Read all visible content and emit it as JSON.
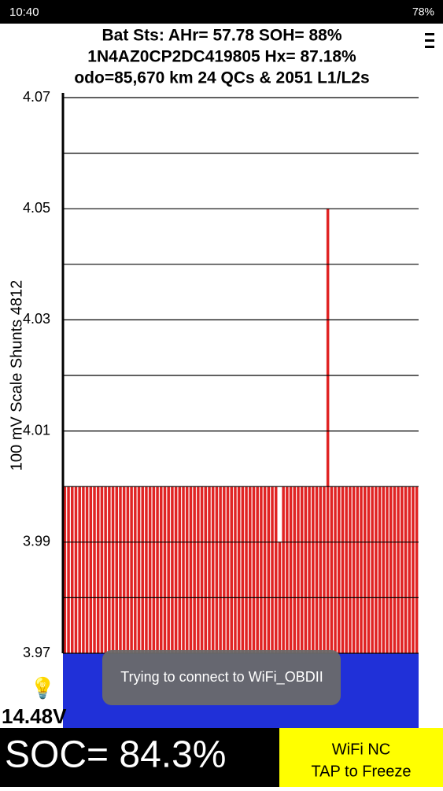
{
  "status_bar": {
    "time": "10:40",
    "battery": "78%"
  },
  "header": {
    "line1": "Bat Sts: AHr= 57.78 SOH= 88%",
    "line2": "1N4AZ0CP2DC419805   Hx= 87.18%",
    "line3": "odo=85,670 km  24 QCs  &  2051 L1/L2s"
  },
  "chart_data": {
    "type": "bar",
    "y_label": "100 mV Scale   Shunts 4812",
    "color": "#e02424",
    "values": [
      4.0,
      4.0,
      4.0,
      4.0,
      4.0,
      4.0,
      4.0,
      4.0,
      4.0,
      4.0,
      4.0,
      4.0,
      4.0,
      4.0,
      4.0,
      4.0,
      4.0,
      4.0,
      4.0,
      4.0,
      4.0,
      4.0,
      4.0,
      4.0,
      4.0,
      4.0,
      4.0,
      4.0,
      4.0,
      4.0,
      4.0,
      4.0,
      4.0,
      4.0,
      4.0,
      4.0,
      4.0,
      4.0,
      4.0,
      4.0,
      4.0,
      4.0,
      4.0,
      4.0,
      4.0,
      4.0,
      4.0,
      4.0,
      4.0,
      4.0,
      4.0,
      4.0,
      4.0,
      4.0,
      4.0,
      4.0,
      4.0,
      4.0,
      3.99,
      4.0,
      4.0,
      4.0,
      4.0,
      4.0,
      4.0,
      4.0,
      4.0,
      4.0,
      4.0,
      4.0,
      4.0,
      4.05,
      4.0,
      4.0,
      4.0,
      4.0,
      4.0,
      4.0,
      4.0,
      4.0,
      4.0,
      4.0,
      4.0,
      4.0,
      4.0,
      4.0,
      4.0,
      4.0,
      4.0,
      4.0,
      4.0,
      4.0,
      4.0,
      4.0,
      4.0,
      4.0
    ],
    "ylim": [
      3.97,
      4.07
    ],
    "yticks": [
      3.97,
      3.99,
      4.01,
      4.03,
      4.05,
      4.07
    ],
    "minor_yticks": [
      3.98,
      4.0,
      4.02,
      4.04,
      4.06
    ],
    "grid": true
  },
  "toast": "Trying to connect to WiFi_OBDII",
  "voltage": "14.48V",
  "soc": "SOC= 84.3%",
  "button": {
    "line1": "WiFi NC",
    "line2": "TAP to Freeze"
  }
}
